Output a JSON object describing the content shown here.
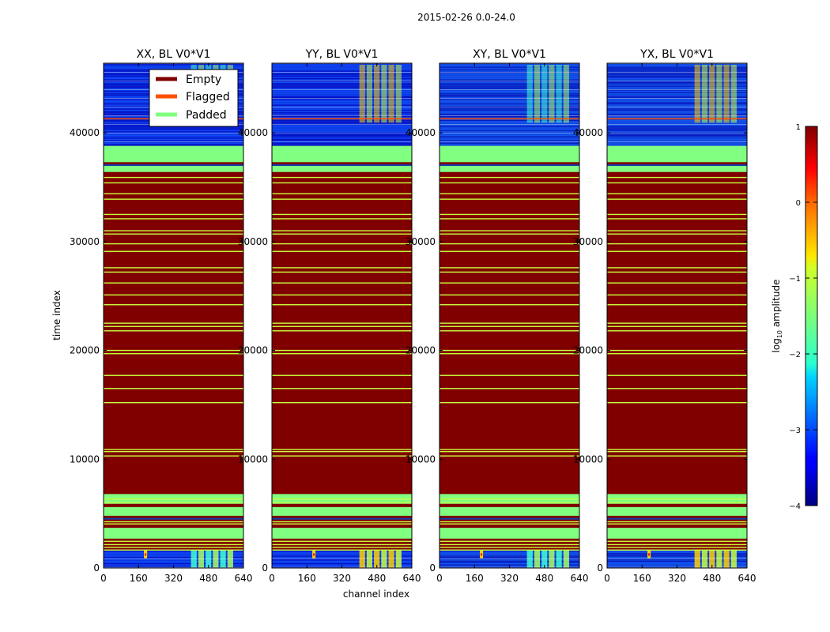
{
  "chart_data": {
    "type": "heatmap",
    "suptitle": "2015-02-26 0.0-24.0",
    "xlabel": "channel index",
    "ylabel": "time index",
    "xlim": [
      0,
      640
    ],
    "ylim": [
      0,
      46400
    ],
    "xticks": [
      0,
      160,
      320,
      480,
      640
    ],
    "yticks": [
      0,
      10000,
      20000,
      30000,
      40000
    ],
    "panels": [
      {
        "title": "XX, BL V0*V1"
      },
      {
        "title": "YY, BL V0*V1"
      },
      {
        "title": "XY, BL V0*V1"
      },
      {
        "title": "YX, BL V0*V1"
      }
    ],
    "legend": {
      "placement": "upper-right of first panel",
      "entries": [
        {
          "label": "Empty",
          "color": "#800000"
        },
        {
          "label": "Flagged",
          "color": "#ff5000"
        },
        {
          "label": "Padded",
          "color": "#80ff80"
        }
      ]
    },
    "colorbar": {
      "label_prefix": "log",
      "label_subscript": "10",
      "label_suffix": " amplitude",
      "range": [
        -4,
        1
      ],
      "ticks": [
        1,
        0,
        -1,
        -2,
        -3,
        -4
      ],
      "tick_labels": [
        "1",
        "0",
        "−1",
        "−2",
        "−3",
        "−4"
      ],
      "colormap": "jet"
    },
    "bands": {
      "padded": [
        [
          2700,
          3700
        ],
        [
          4800,
          5600
        ],
        [
          5900,
          6800
        ],
        [
          36400,
          37000
        ],
        [
          37300,
          38800
        ]
      ],
      "padded_lines": [
        1650,
        1900,
        2150,
        2450,
        4050,
        4250,
        6000,
        6350,
        10300,
        10700,
        10900,
        15200,
        16500,
        17700,
        19700,
        20000,
        21800,
        22200,
        22500,
        24200,
        25100,
        26200,
        27200,
        27600,
        29100,
        29800,
        30700,
        31000,
        32100,
        32500,
        33900,
        34400,
        35400,
        35900
      ],
      "data_blocks": [
        [
          0,
          1700
        ],
        [
          38800,
          46400
        ]
      ],
      "flagged_lines": [
        41300
      ],
      "rfi_channel_range": [
        400,
        600
      ]
    }
  }
}
